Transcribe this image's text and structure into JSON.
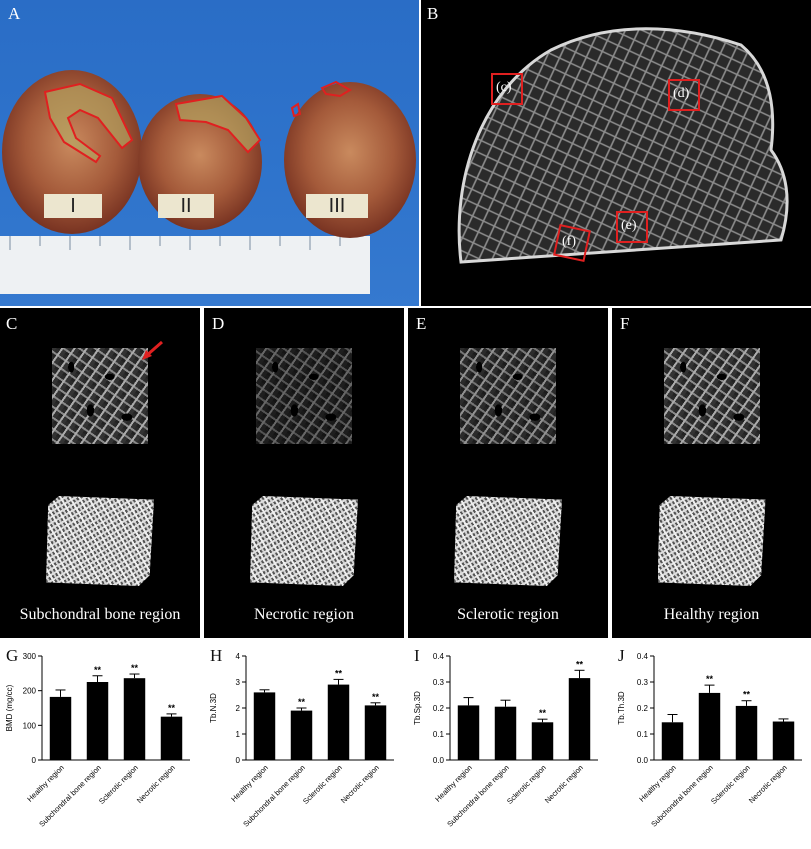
{
  "panels": {
    "A": {
      "label": "A",
      "specimen_labels": [
        "I",
        "II",
        "III"
      ]
    },
    "B": {
      "label": "B",
      "roi_labels": [
        "(c)",
        "(d)",
        "(e)",
        "(f)"
      ]
    },
    "C": {
      "label": "C",
      "caption": "Subchondral bone region"
    },
    "D": {
      "label": "D",
      "caption": "Necrotic region"
    },
    "E": {
      "label": "E",
      "caption": "Sclerotic region"
    },
    "F": {
      "label": "F",
      "caption": "Healthy region"
    }
  },
  "colors": {
    "roi": "#e02020",
    "bar": "#000000",
    "photo_bg": "#2f74cc"
  },
  "chart_data": [
    {
      "panel": "G",
      "type": "bar",
      "ylabel": "BMD (mg/cc)",
      "ylim": [
        0,
        300
      ],
      "yticks": [
        "0",
        "100",
        "200",
        "300"
      ],
      "categories": [
        "Healthy region",
        "Subchondral bone region",
        "Sclerotic region",
        "Necrotic region"
      ],
      "values": [
        182,
        225,
        236,
        125
      ],
      "errors": [
        20,
        18,
        12,
        8
      ],
      "significance": [
        "",
        "**",
        "**",
        "**"
      ]
    },
    {
      "panel": "H",
      "type": "bar",
      "ylabel": "Tb.N.3D",
      "ylim": [
        0,
        4
      ],
      "yticks": [
        "0",
        "1",
        "2",
        "3",
        "4"
      ],
      "categories": [
        "Healthy region",
        "Subchondral bone region",
        "Sclerotic region",
        "Necrotic region"
      ],
      "values": [
        2.6,
        1.9,
        2.9,
        2.1
      ],
      "errors": [
        0.1,
        0.1,
        0.2,
        0.1
      ],
      "significance": [
        "",
        "**",
        "**",
        "**"
      ]
    },
    {
      "panel": "I",
      "type": "bar",
      "ylabel": "Tb.Sp.3D",
      "ylim": [
        0,
        0.4
      ],
      "yticks": [
        "0.0",
        "0.1",
        "0.2",
        "0.3",
        "0.4"
      ],
      "categories": [
        "Healthy region",
        "Subchondral bone region",
        "Sclerotic region",
        "Necrotic region"
      ],
      "values": [
        0.21,
        0.205,
        0.145,
        0.315
      ],
      "errors": [
        0.03,
        0.025,
        0.012,
        0.03
      ],
      "significance": [
        "",
        "",
        "**",
        "**"
      ]
    },
    {
      "panel": "J",
      "type": "bar",
      "ylabel": "Tb.Th.3D",
      "ylim": [
        0,
        0.4
      ],
      "yticks": [
        "0.0",
        "0.1",
        "0.2",
        "0.3",
        "0.4"
      ],
      "categories": [
        "Healthy region",
        "Subchondral bone region",
        "Sclerotic region",
        "Necrotic region"
      ],
      "values": [
        0.145,
        0.258,
        0.208,
        0.148
      ],
      "errors": [
        0.03,
        0.03,
        0.02,
        0.01
      ],
      "significance": [
        "",
        "**",
        "**",
        ""
      ]
    }
  ]
}
